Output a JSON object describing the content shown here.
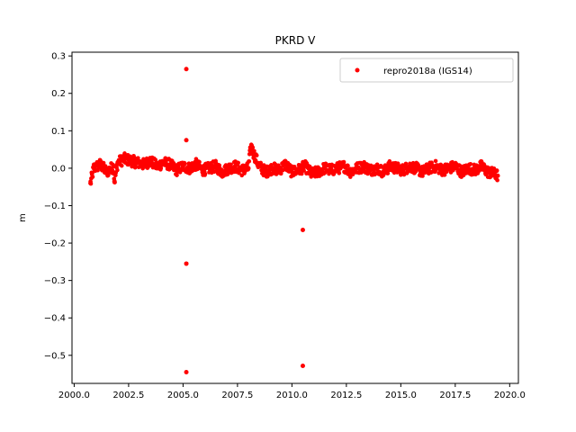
{
  "chart_data": {
    "type": "scatter",
    "title": "PKRD V",
    "xlabel": "",
    "ylabel": "m",
    "xlim": [
      1999.9,
      2020.4
    ],
    "ylim": [
      -0.575,
      0.31
    ],
    "x_ticks": [
      2000.0,
      2002.5,
      2005.0,
      2007.5,
      2010.0,
      2012.5,
      2015.0,
      2017.5,
      2020.0
    ],
    "x_tick_labels": [
      "2000.0",
      "2002.5",
      "2005.0",
      "2007.5",
      "2010.0",
      "2012.5",
      "2015.0",
      "2017.5",
      "2020.0"
    ],
    "y_ticks": [
      0.3,
      0.2,
      0.1,
      0.0,
      -0.1,
      -0.2,
      -0.3,
      -0.4,
      -0.5
    ],
    "y_tick_labels": [
      "0.3",
      "0.2",
      "0.1",
      "0.0",
      "−0.1",
      "−0.2",
      "−0.3",
      "−0.4",
      "−0.5"
    ],
    "grid": false,
    "legend_position": "top-right",
    "series": [
      {
        "name": "repro2018a (IGS14)",
        "color": "#ff0000",
        "marker": "circle",
        "x": [
          2000.75,
          2000.9,
          2001.2,
          2001.5,
          2001.8,
          2002.0,
          2002.3,
          2002.6,
          2002.9,
          2003.2,
          2003.5,
          2003.8,
          2004.1,
          2004.4,
          2004.7,
          2005.0,
          2005.3,
          2005.6,
          2005.9,
          2006.2,
          2006.5,
          2006.8,
          2007.1,
          2007.4,
          2007.7,
          2008.0,
          2008.1,
          2008.15,
          2008.2,
          2008.5,
          2008.8,
          2009.1,
          2009.4,
          2009.7,
          2010.0,
          2010.3,
          2010.6,
          2010.9,
          2011.2,
          2011.5,
          2011.8,
          2012.1,
          2012.4,
          2012.7,
          2013.0,
          2013.3,
          2013.6,
          2013.9,
          2014.2,
          2014.5,
          2014.8,
          2015.1,
          2015.4,
          2015.7,
          2016.0,
          2016.3,
          2016.6,
          2016.9,
          2017.2,
          2017.5,
          2017.8,
          2018.1,
          2018.4,
          2018.7,
          2019.0,
          2019.3,
          2019.45,
          2001.85,
          2005.15,
          2005.15,
          2005.15,
          2005.15,
          2010.5,
          2010.5
        ],
        "y": [
          -0.04,
          0.0,
          0.01,
          -0.01,
          0.005,
          0.015,
          0.025,
          0.02,
          0.015,
          0.01,
          0.02,
          0.005,
          0.015,
          0.01,
          -0.005,
          0.005,
          0.0,
          0.01,
          -0.005,
          0.0,
          0.005,
          -0.01,
          0.0,
          0.005,
          -0.005,
          0.0,
          0.05,
          0.06,
          0.045,
          0.005,
          -0.01,
          0.0,
          -0.005,
          0.01,
          -0.01,
          -0.005,
          0.005,
          -0.015,
          -0.01,
          0.0,
          -0.005,
          0.0,
          0.005,
          -0.01,
          0.0,
          0.005,
          -0.005,
          0.0,
          -0.01,
          0.005,
          0.0,
          -0.005,
          0.005,
          0.0,
          -0.01,
          0.0,
          0.005,
          -0.005,
          0.0,
          0.005,
          -0.01,
          0.0,
          -0.005,
          0.005,
          -0.01,
          -0.015,
          -0.02,
          -0.035,
          0.265,
          0.075,
          -0.255,
          -0.545,
          -0.165,
          -0.528
        ]
      }
    ]
  }
}
